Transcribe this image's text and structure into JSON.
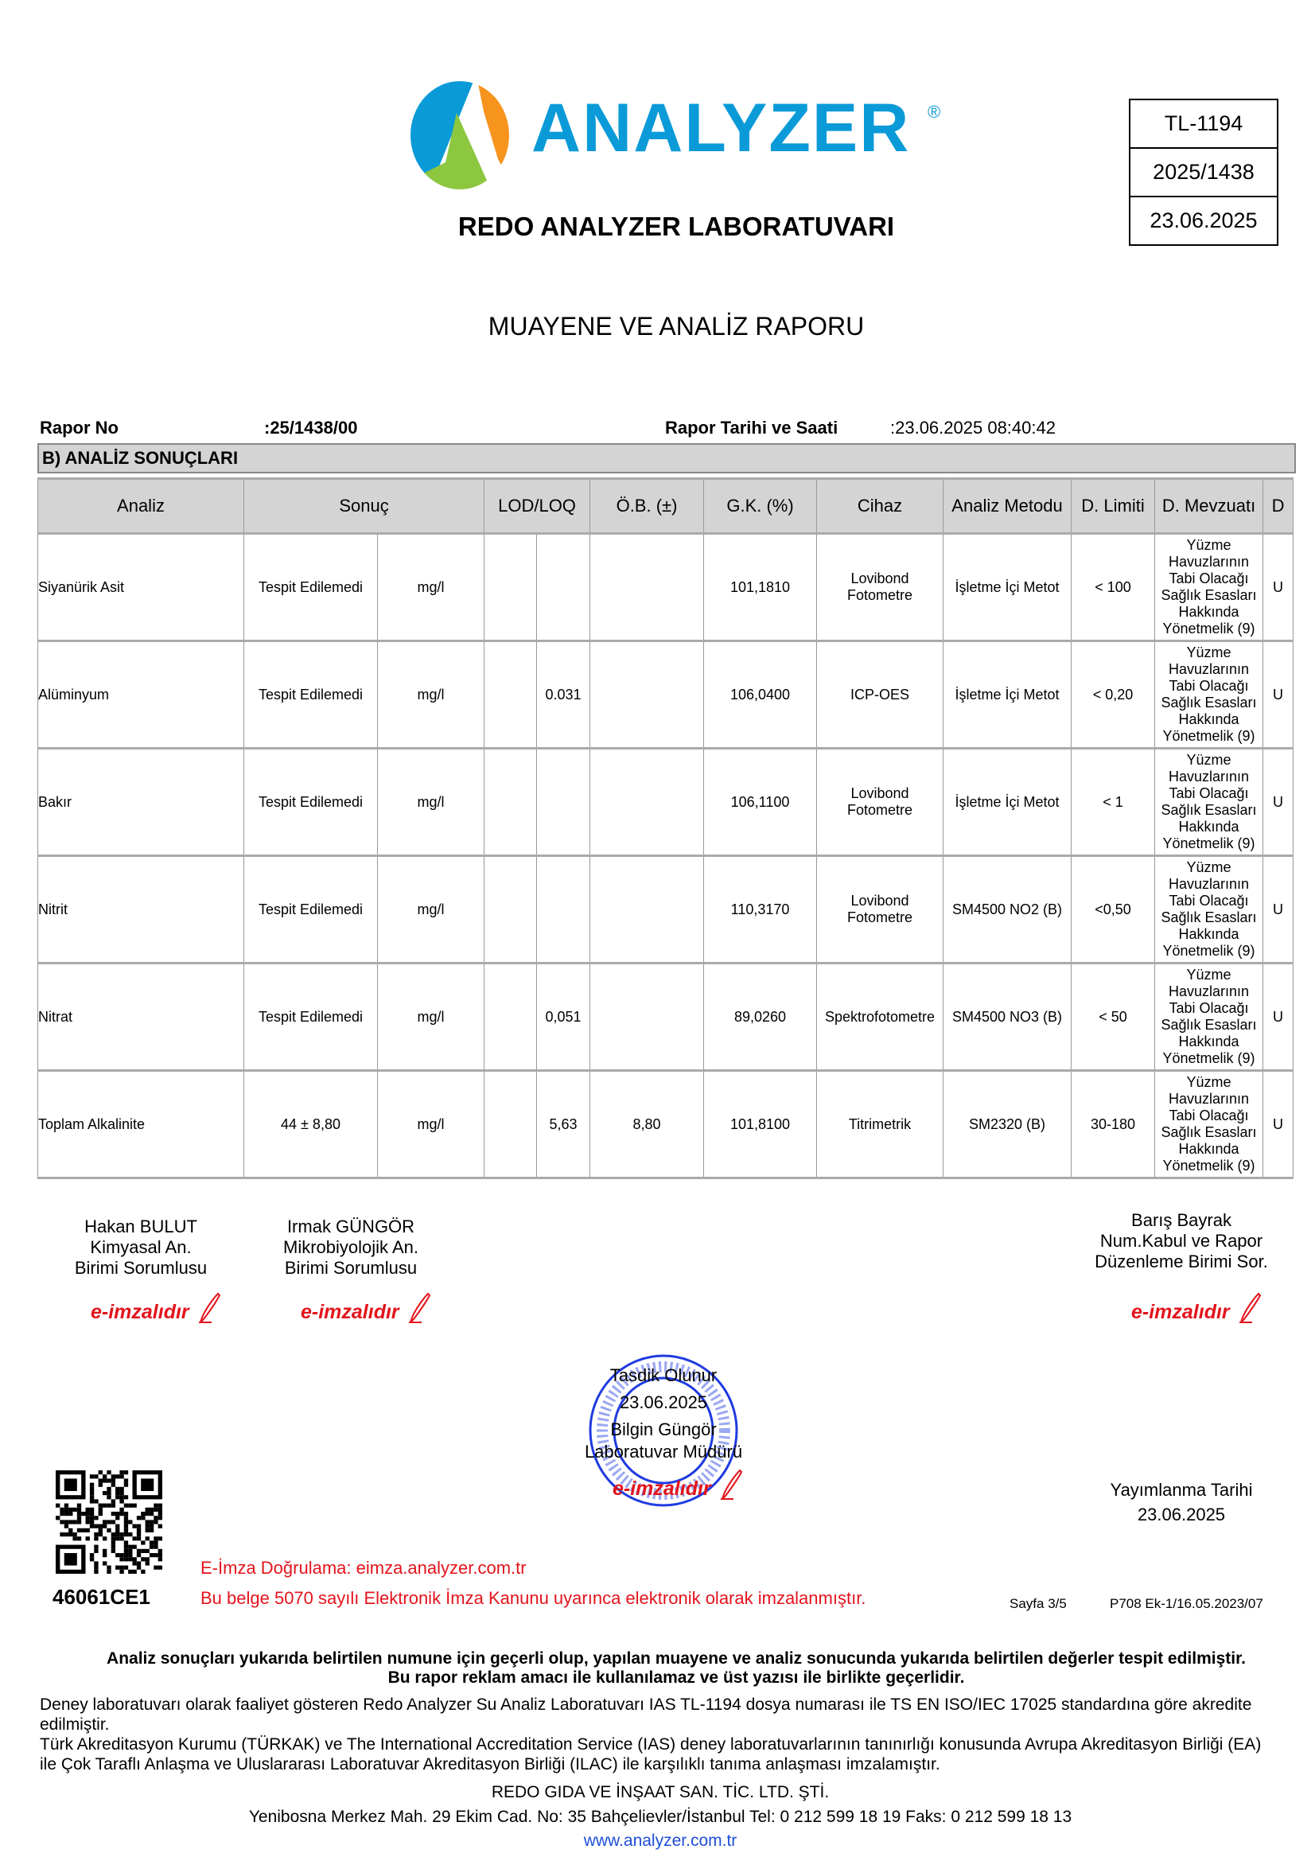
{
  "header": {
    "logo_text": "ANALYZER",
    "logo_registered": "®",
    "lab_name": "REDO ANALYZER LABORATUVARI",
    "id_box": [
      "TL-1194",
      "2025/1438",
      "23.06.2025"
    ],
    "colors": {
      "brand_blue": "#0a9ad8",
      "orange": "#f7941d",
      "green": "#8dc63f"
    }
  },
  "title": "MUAYENE VE ANALİZ RAPORU",
  "meta": {
    "report_no_label": "Rapor No",
    "report_no_value": ":25/1438/00",
    "report_date_label": "Rapor Tarihi ve Saati",
    "report_date_value": ":23.06.2025 08:40:42"
  },
  "section_title": "B) ANALİZ SONUÇLARI",
  "table": {
    "columns": [
      "Analiz",
      "Sonuç",
      "LOD/LOQ",
      "Ö.B. (±)",
      "G.K. (%)",
      "Cihaz",
      "Analiz Metodu",
      "D. Limiti",
      "D. Mevzuatı",
      "D"
    ],
    "rows": [
      {
        "analiz": "Siyanürik Asit",
        "sonuc": "Tespit Edilemedi",
        "birim": "mg/l",
        "lod": "",
        "loq": "",
        "ob": "",
        "gk": "101,1810",
        "cihaz": "Lovibond Fotometre",
        "metot": "İşletme İçi Metot",
        "limit": "< 100",
        "mevzuat": "Yüzme Havuzlarının Tabi Olacağı Sağlık Esasları Hakkında Yönetmelik (9)",
        "d": "U"
      },
      {
        "analiz": "Alüminyum",
        "sonuc": "Tespit Edilemedi",
        "birim": "mg/l",
        "lod": "",
        "loq": "0.031",
        "ob": "",
        "gk": "106,0400",
        "cihaz": "ICP-OES",
        "metot": "İşletme İçi Metot",
        "limit": "< 0,20",
        "mevzuat": "Yüzme Havuzlarının Tabi Olacağı Sağlık Esasları Hakkında Yönetmelik (9)",
        "d": "U"
      },
      {
        "analiz": "Bakır",
        "sonuc": "Tespit Edilemedi",
        "birim": "mg/l",
        "lod": "",
        "loq": "",
        "ob": "",
        "gk": "106,1100",
        "cihaz": "Lovibond Fotometre",
        "metot": "İşletme İçi Metot",
        "limit": "< 1",
        "mevzuat": "Yüzme Havuzlarının Tabi Olacağı Sağlık Esasları Hakkında Yönetmelik (9)",
        "d": "U"
      },
      {
        "analiz": "Nitrit",
        "sonuc": "Tespit Edilemedi",
        "birim": "mg/l",
        "lod": "",
        "loq": "",
        "ob": "",
        "gk": "110,3170",
        "cihaz": "Lovibond Fotometre",
        "metot": "SM4500 NO2 (B)",
        "limit": "<0,50",
        "mevzuat": "Yüzme Havuzlarının Tabi Olacağı Sağlık Esasları Hakkında Yönetmelik (9)",
        "d": "U"
      },
      {
        "analiz": "Nitrat",
        "sonuc": "Tespit Edilemedi",
        "birim": "mg/l",
        "lod": "",
        "loq": "0,051",
        "ob": "",
        "gk": "89,0260",
        "cihaz": "Spektrofotometre",
        "metot": "SM4500 NO3 (B)",
        "limit": "< 50",
        "mevzuat": "Yüzme Havuzlarının Tabi Olacağı Sağlık Esasları Hakkında Yönetmelik (9)",
        "d": "U"
      },
      {
        "analiz": "Toplam Alkalinite",
        "sonuc": "44 ± 8,80",
        "birim": "mg/l",
        "lod": "",
        "loq": "5,63",
        "ob": "8,80",
        "gk": "101,8100",
        "cihaz": "Titrimetrik",
        "metot": "SM2320 (B)",
        "limit": "30-180",
        "mevzuat": "Yüzme Havuzlarının Tabi Olacağı Sağlık Esasları Hakkında Yönetmelik (9)",
        "d": "U"
      }
    ]
  },
  "signatures": {
    "esig_label": "e-imzalıdır",
    "signers": [
      {
        "name": "Hakan  BULUT",
        "line2": "Kimyasal An.",
        "line3": "Birimi Sorumlusu"
      },
      {
        "name": "Irmak GÜNGÖR",
        "line2": "Mikrobiyolojik An.",
        "line3": "Birimi Sorumlusu"
      },
      {
        "name": "Barış Bayrak",
        "line2": "Num.Kabul ve Rapor",
        "line3": "Düzenleme Birimi Sor."
      }
    ],
    "approval": {
      "line1": "Tasdik Olunur",
      "date": "23.06.2025",
      "name": "Bilgin Güngör",
      "title": "Laboratuvar Müdürü"
    },
    "publish_label": "Yayımlanma Tarihi",
    "publish_date": "23.06.2025"
  },
  "verification": {
    "qr_code_id": "46061CE1",
    "verify_text": "E-İmza Doğrulama: eimza.analyzer.com.tr",
    "legal_text": "Bu belge 5070 sayılı Elektronik İmza Kanunu uyarınca elektronik olarak imzalanmıştır.",
    "page": "Sayfa 3/5",
    "form_code": "P708 Ek-1/16.05.2023/07"
  },
  "footer": {
    "bold1": "Analiz sonuçları yukarıda belirtilen numune için geçerli olup, yapılan muayene ve analiz sonucunda yukarıda belirtilen değerler tespit edilmiştir.",
    "bold2": "Bu rapor reklam amacı ile kullanılamaz ve üst yazısı ile birlikte geçerlidir.",
    "para1": "Deney laboratuvarı olarak faaliyet gösteren Redo Analyzer Su Analiz Laboratuvarı IAS TL-1194 dosya numarası ile TS EN ISO/IEC 17025 standardına göre akredite edilmiştir.",
    "para2": "Türk Akreditasyon Kurumu (TÜRKAK) ve The International Accreditation Service (IAS) deney laboratuvarlarının tanınırlığı konusunda Avrupa Akreditasyon Birliği (EA) ile Çok Taraflı Anlaşma ve Uluslararası Laboratuvar Akreditasyon Birliği (ILAC) ile karşılıklı tanıma anlaşması imzalamıştır.",
    "company": "REDO GIDA VE İNŞAAT SAN. TİC. LTD. ŞTİ.",
    "address": "Yenibosna Merkez Mah. 29 Ekim Cad. No: 35 Bahçelievler/İstanbul Tel: 0 212 599 18 19 Faks: 0 212 599 18 13",
    "website": "www.analyzer.com.tr"
  }
}
